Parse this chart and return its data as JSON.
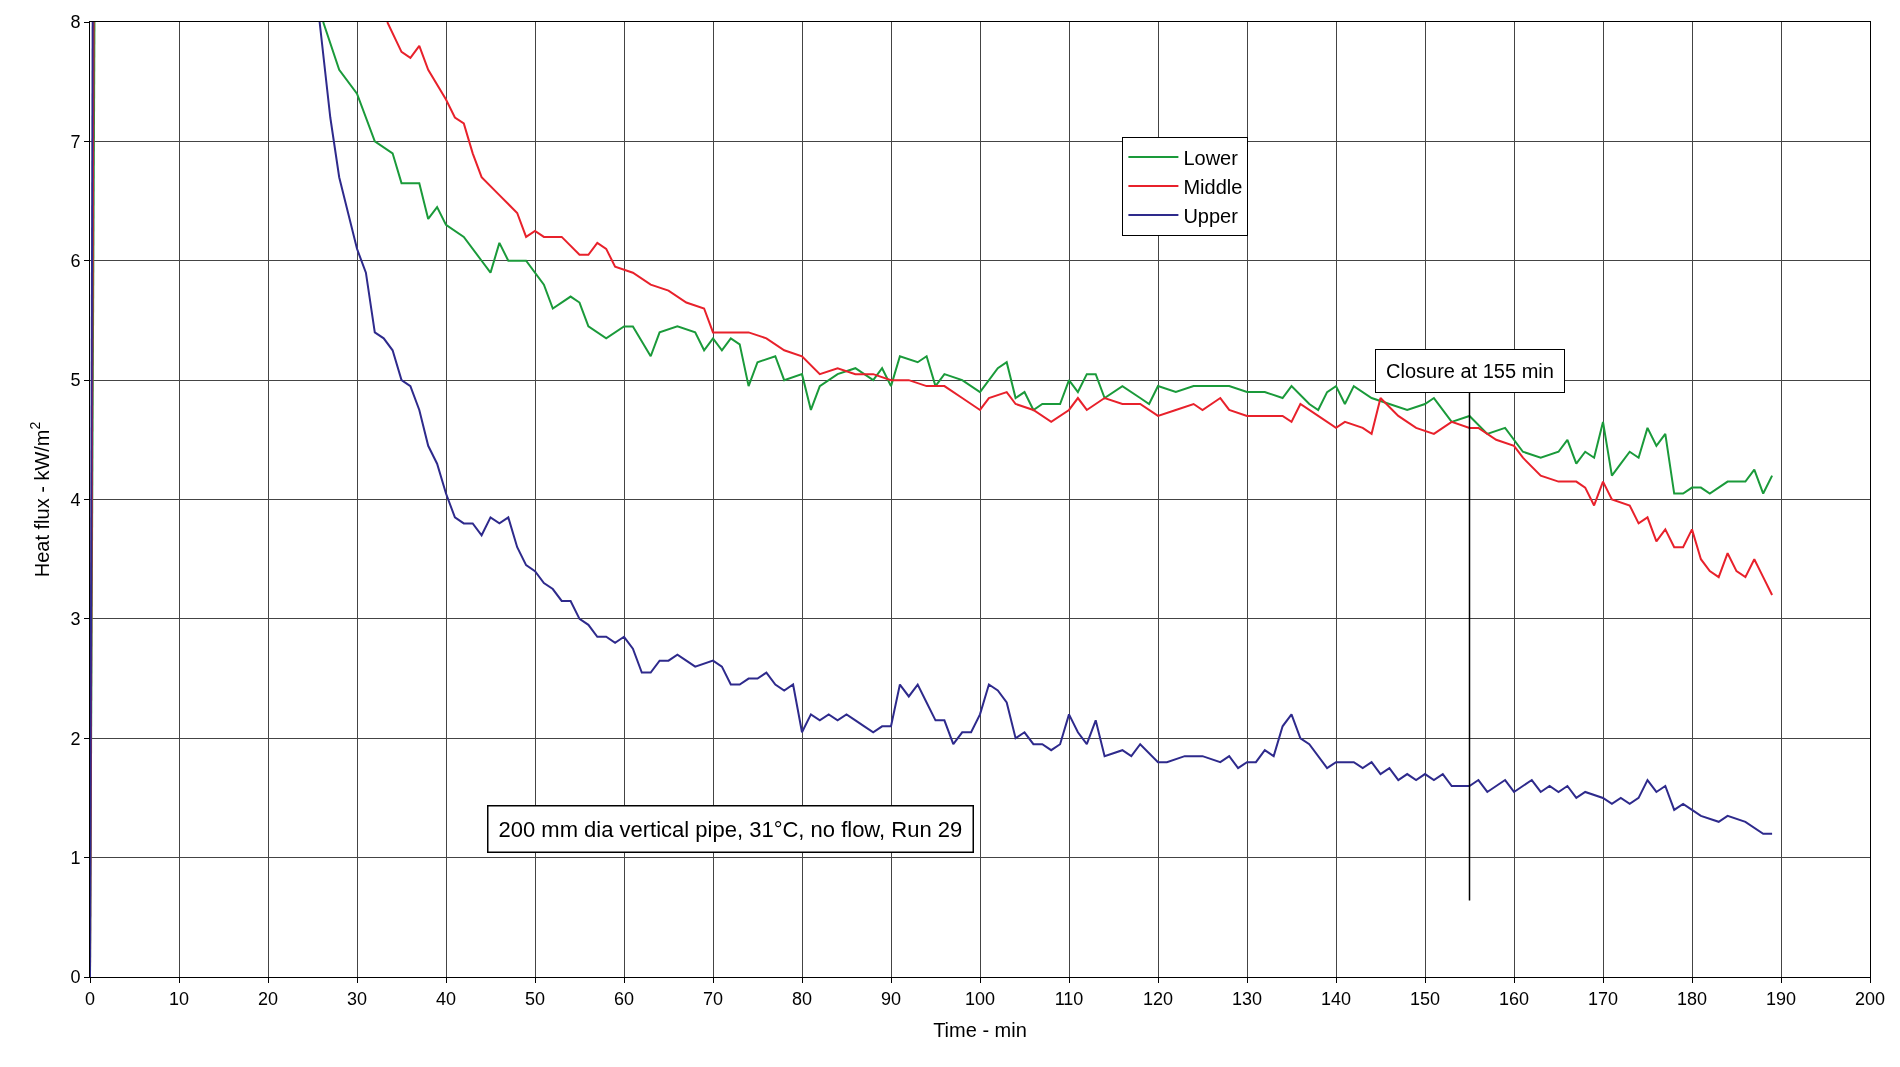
{
  "chart_data": {
    "type": "line",
    "xlabel": "Time - min",
    "ylabel": "Heat flux - kW/m$^{2}$",
    "xlim": [
      0,
      200
    ],
    "xticks": [
      0,
      10,
      20,
      30,
      40,
      50,
      60,
      70,
      80,
      90,
      100,
      110,
      120,
      130,
      140,
      150,
      160,
      170,
      180,
      190,
      200
    ],
    "ylim": [
      0,
      8
    ],
    "yticks": [
      0,
      1,
      2,
      3,
      4,
      5,
      6,
      7,
      8
    ],
    "grid": true,
    "legend": "top right",
    "marker": "none",
    "line_style": "solid",
    "annotations": [
      "Closure at 155 min",
      "200 mm dia vertical pipe, 31°C, no flow, Run 29"
    ],
    "series": [
      {
        "name": "Lower",
        "color": "#1a9a3a",
        "x": [
          0,
          0.5,
          10,
          26.2,
          28,
          30,
          32,
          34,
          35,
          37,
          38,
          39,
          40,
          42,
          44,
          45,
          46,
          47,
          49,
          51,
          52,
          54,
          55,
          56,
          58,
          60,
          61,
          63,
          64,
          66,
          68,
          69,
          70,
          71,
          72,
          73,
          74,
          75,
          77,
          78,
          80,
          81,
          82,
          84,
          86,
          88,
          89,
          90,
          91,
          93,
          94,
          95,
          96,
          98,
          100,
          102,
          103,
          104,
          105,
          106,
          107,
          109,
          110,
          111,
          112,
          113,
          114,
          116,
          118,
          119,
          120,
          122,
          124,
          126,
          128,
          130,
          132,
          134,
          135,
          137,
          138,
          139,
          140,
          141,
          142,
          144,
          146,
          148,
          150,
          151,
          153,
          155,
          157,
          159,
          161,
          163,
          165,
          166,
          167,
          168,
          169,
          170,
          171,
          172,
          173,
          174,
          175,
          176,
          177,
          178,
          179,
          180,
          181,
          182,
          184,
          186,
          187,
          188,
          189
        ],
        "values": [
          0,
          8,
          null,
          8,
          7.6,
          7.4,
          7.0,
          6.9,
          6.65,
          6.65,
          6.35,
          6.45,
          6.3,
          6.2,
          6.0,
          5.9,
          6.15,
          6.0,
          6.0,
          5.8,
          5.6,
          5.7,
          5.65,
          5.45,
          5.35,
          5.45,
          5.45,
          5.2,
          5.4,
          5.45,
          5.4,
          5.25,
          5.35,
          5.25,
          5.35,
          5.3,
          4.95,
          5.15,
          5.2,
          5.0,
          5.05,
          4.75,
          4.95,
          5.05,
          5.1,
          5.0,
          5.1,
          4.95,
          5.2,
          5.15,
          5.2,
          4.95,
          5.05,
          5.0,
          4.9,
          5.1,
          5.15,
          4.85,
          4.9,
          4.75,
          4.8,
          4.8,
          5.0,
          4.9,
          5.05,
          5.05,
          4.85,
          4.95,
          4.85,
          4.8,
          4.95,
          4.9,
          4.95,
          4.95,
          4.95,
          4.9,
          4.9,
          4.85,
          4.95,
          4.8,
          4.75,
          4.9,
          4.95,
          4.8,
          4.95,
          4.85,
          4.8,
          4.75,
          4.8,
          4.85,
          4.65,
          4.7,
          4.55,
          4.6,
          4.4,
          4.35,
          4.4,
          4.5,
          4.3,
          4.4,
          4.35,
          4.65,
          4.2,
          4.3,
          4.4,
          4.35,
          4.6,
          4.45,
          4.55,
          4.05,
          4.05,
          4.1,
          4.1,
          4.05,
          4.15,
          4.15,
          4.25,
          4.05,
          4.2
        ]
      },
      {
        "name": "Middle",
        "color": "#e8212b",
        "x": [
          0,
          0.4,
          10,
          33.4,
          35,
          36,
          37,
          38,
          40,
          41,
          42,
          43,
          44,
          46,
          48,
          49,
          50,
          51,
          53,
          55,
          56,
          57,
          58,
          59,
          61,
          63,
          65,
          67,
          69,
          70,
          72,
          74,
          76,
          78,
          80,
          82,
          84,
          86,
          88,
          90,
          92,
          94,
          96,
          98,
          100,
          101,
          103,
          104,
          106,
          108,
          110,
          111,
          112,
          114,
          116,
          118,
          120,
          122,
          124,
          125,
          127,
          128,
          130,
          132,
          134,
          135,
          136,
          138,
          140,
          141,
          143,
          144,
          145,
          147,
          149,
          151,
          153,
          155,
          156,
          158,
          160,
          161,
          163,
          165,
          167,
          168,
          169,
          170,
          171,
          173,
          174,
          175,
          176,
          177,
          178,
          179,
          180,
          181,
          182,
          183,
          184,
          185,
          186,
          187,
          188,
          189
        ],
        "values": [
          0,
          8,
          null,
          8,
          7.75,
          7.7,
          7.8,
          7.6,
          7.35,
          7.2,
          7.15,
          6.9,
          6.7,
          6.55,
          6.4,
          6.2,
          6.25,
          6.2,
          6.2,
          6.05,
          6.05,
          6.15,
          6.1,
          5.95,
          5.9,
          5.8,
          5.75,
          5.65,
          5.6,
          5.4,
          5.4,
          5.4,
          5.35,
          5.25,
          5.2,
          5.05,
          5.1,
          5.05,
          5.05,
          5.0,
          5.0,
          4.95,
          4.95,
          4.85,
          4.75,
          4.85,
          4.9,
          4.8,
          4.75,
          4.65,
          4.75,
          4.85,
          4.75,
          4.85,
          4.8,
          4.8,
          4.7,
          4.75,
          4.8,
          4.75,
          4.85,
          4.75,
          4.7,
          4.7,
          4.7,
          4.65,
          4.8,
          4.7,
          4.6,
          4.65,
          4.6,
          4.55,
          4.85,
          4.7,
          4.6,
          4.55,
          4.65,
          4.6,
          4.6,
          4.5,
          4.45,
          4.35,
          4.2,
          4.15,
          4.15,
          4.1,
          3.95,
          4.15,
          4.0,
          3.95,
          3.8,
          3.85,
          3.65,
          3.75,
          3.6,
          3.6,
          3.75,
          3.5,
          3.4,
          3.35,
          3.55,
          3.4,
          3.35,
          3.5,
          3.35,
          3.2
        ]
      },
      {
        "name": "Upper",
        "color": "#2e2a8c",
        "x": [
          0,
          0.3,
          10,
          25.8,
          27,
          28,
          29,
          30,
          31,
          32,
          33,
          34,
          35,
          36,
          37,
          38,
          39,
          40,
          41,
          42,
          43,
          44,
          45,
          46,
          47,
          48,
          49,
          50,
          51,
          52,
          53,
          54,
          55,
          56,
          57,
          58,
          59,
          60,
          61,
          62,
          63,
          64,
          65,
          66,
          67,
          68,
          70,
          71,
          72,
          73,
          74,
          75,
          76,
          77,
          78,
          79,
          80,
          81,
          82,
          83,
          84,
          85,
          86,
          87,
          88,
          89,
          90,
          91,
          92,
          93,
          94,
          95,
          96,
          97,
          98,
          99,
          100,
          101,
          102,
          103,
          104,
          105,
          106,
          107,
          108,
          109,
          110,
          111,
          112,
          113,
          114,
          116,
          117,
          118,
          120,
          121,
          123,
          125,
          127,
          128,
          129,
          130,
          131,
          132,
          133,
          134,
          135,
          136,
          137,
          139,
          140,
          142,
          143,
          144,
          145,
          146,
          147,
          148,
          149,
          150,
          151,
          152,
          153,
          155,
          156,
          157,
          158,
          159,
          160,
          162,
          163,
          164,
          165,
          166,
          167,
          168,
          170,
          171,
          172,
          173,
          174,
          175,
          176,
          177,
          178,
          179,
          180,
          181,
          183,
          184,
          186,
          188,
          189
        ],
        "values": [
          0,
          8,
          null,
          8,
          7.2,
          6.7,
          6.4,
          6.1,
          5.9,
          5.4,
          5.35,
          5.25,
          5.0,
          4.95,
          4.75,
          4.45,
          4.3,
          4.05,
          3.85,
          3.8,
          3.8,
          3.7,
          3.85,
          3.8,
          3.85,
          3.6,
          3.45,
          3.4,
          3.3,
          3.25,
          3.15,
          3.15,
          3.0,
          2.95,
          2.85,
          2.85,
          2.8,
          2.85,
          2.75,
          2.55,
          2.55,
          2.65,
          2.65,
          2.7,
          2.65,
          2.6,
          2.65,
          2.6,
          2.45,
          2.45,
          2.5,
          2.5,
          2.55,
          2.45,
          2.4,
          2.45,
          2.05,
          2.2,
          2.15,
          2.2,
          2.15,
          2.2,
          2.15,
          2.1,
          2.05,
          2.1,
          2.1,
          2.45,
          2.35,
          2.45,
          2.3,
          2.15,
          2.15,
          1.95,
          2.05,
          2.05,
          2.2,
          2.45,
          2.4,
          2.3,
          2.0,
          2.05,
          1.95,
          1.95,
          1.9,
          1.95,
          2.2,
          2.05,
          1.95,
          2.15,
          1.85,
          1.9,
          1.85,
          1.95,
          1.8,
          1.8,
          1.85,
          1.85,
          1.8,
          1.85,
          1.75,
          1.8,
          1.8,
          1.9,
          1.85,
          2.1,
          2.2,
          2.0,
          1.95,
          1.75,
          1.8,
          1.8,
          1.75,
          1.8,
          1.7,
          1.75,
          1.65,
          1.7,
          1.65,
          1.7,
          1.65,
          1.7,
          1.6,
          1.6,
          1.65,
          1.55,
          1.6,
          1.65,
          1.55,
          1.65,
          1.55,
          1.6,
          1.55,
          1.6,
          1.5,
          1.55,
          1.5,
          1.45,
          1.5,
          1.45,
          1.5,
          1.65,
          1.55,
          1.6,
          1.4,
          1.45,
          1.4,
          1.35,
          1.3,
          1.35,
          1.3,
          1.2,
          1.2
        ]
      }
    ]
  }
}
